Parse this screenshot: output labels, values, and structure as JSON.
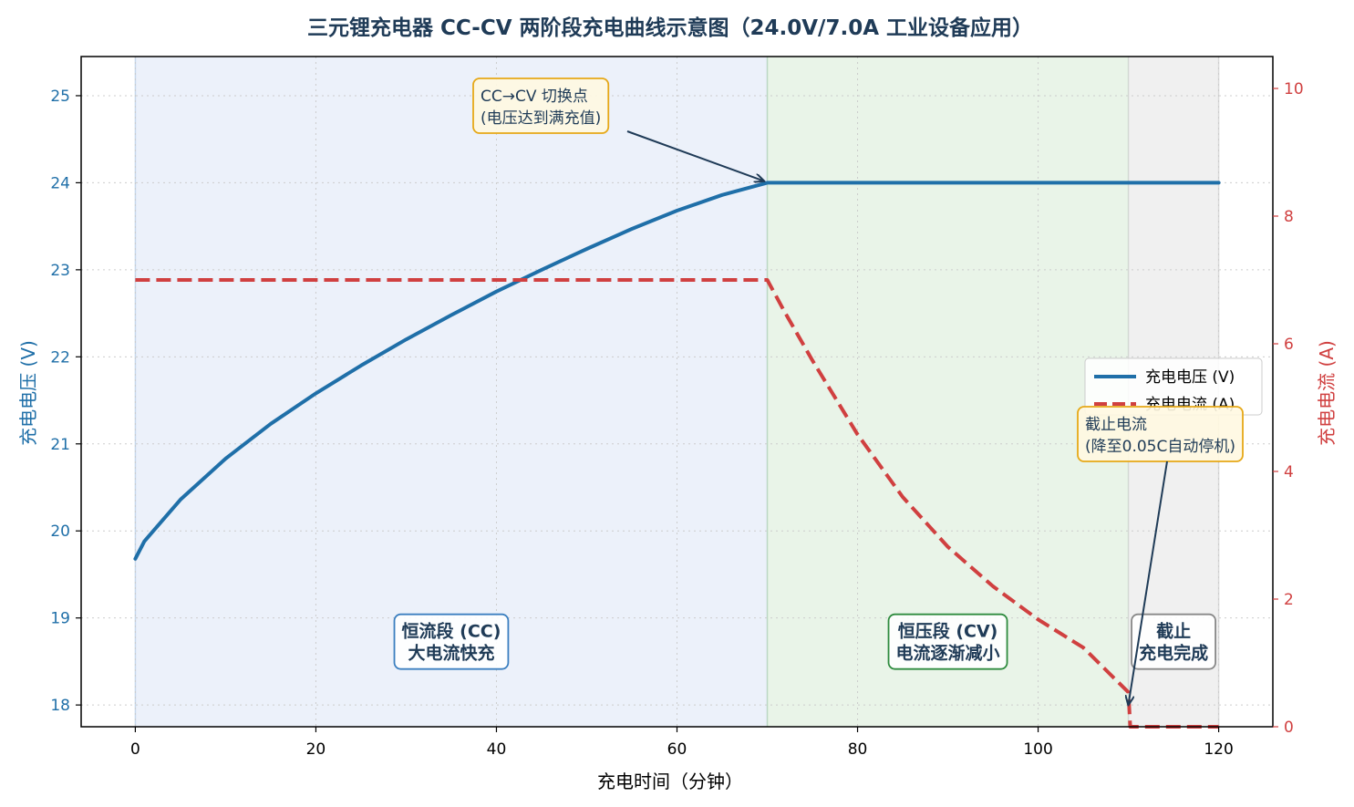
{
  "chart_data": {
    "type": "line",
    "title": "三元锂充电器 CC-CV 两阶段充电曲线示意图（24.0V/7.0A 工业设备应用）",
    "xlabel": "充电时间（分钟）",
    "ylabel_left": "充电电压 (V)",
    "ylabel_right": "充电电流 (A)",
    "xlim": [
      -6,
      126
    ],
    "ylim_left": [
      17.75,
      25.45
    ],
    "ylim_right": [
      0,
      10.5
    ],
    "x_ticks": [
      0,
      20,
      40,
      60,
      80,
      100,
      120
    ],
    "y_ticks_left": [
      18,
      19,
      20,
      21,
      22,
      23,
      24,
      25
    ],
    "y_ticks_right": [
      0,
      2,
      4,
      6,
      8,
      10
    ],
    "grid": true,
    "legend_position": "center-right",
    "series": [
      {
        "name": "充电电压 (V)",
        "axis": "left",
        "color": "#1f6fa8",
        "style": "solid",
        "x": [
          0,
          1,
          2,
          5,
          10,
          15,
          20,
          25,
          30,
          35,
          40,
          45,
          50,
          55,
          60,
          65,
          70,
          80,
          90,
          100,
          110,
          120
        ],
        "y": [
          19.68,
          19.88,
          20.0,
          20.36,
          20.83,
          21.23,
          21.58,
          21.9,
          22.2,
          22.48,
          22.75,
          23.0,
          23.24,
          23.47,
          23.68,
          23.86,
          24.0,
          24.0,
          24.0,
          24.0,
          24.0,
          24.0
        ]
      },
      {
        "name": "充电电流 (A)",
        "axis": "right",
        "color": "#d04040",
        "style": "dashed",
        "x": [
          0,
          10,
          20,
          30,
          40,
          50,
          60,
          70,
          72,
          75,
          80,
          85,
          90,
          95,
          100,
          105,
          110,
          110.2,
          115,
          120
        ],
        "y": [
          7.0,
          7.0,
          7.0,
          7.0,
          7.0,
          7.0,
          7.0,
          7.0,
          6.48,
          5.74,
          4.58,
          3.6,
          2.82,
          2.2,
          1.68,
          1.24,
          0.54,
          0.0,
          0.0,
          0.0
        ]
      }
    ],
    "regions": [
      {
        "x_start": 0,
        "x_end": 70,
        "color": "#dce6f5",
        "label": "恒流段 (CC)\n大电流快充",
        "border": "#3b7fc0"
      },
      {
        "x_start": 70,
        "x_end": 110,
        "color": "#d7ebd5",
        "label": "恒压段 (CV)\n电流逐渐减小",
        "border": "#2e8b3e"
      },
      {
        "x_start": 110,
        "x_end": 120,
        "color": "#e4e4e4",
        "label": "截止\n充电完成",
        "border": "#888888"
      }
    ],
    "annotations": [
      {
        "text": "CC→CV 切换点\n(电压达到满充值)",
        "target_x": 70,
        "target_y_left": 24.0
      },
      {
        "text": "截止电流\n(降至0.05C自动停机)",
        "target_x": 110,
        "target_y_right": 0.35
      }
    ]
  }
}
